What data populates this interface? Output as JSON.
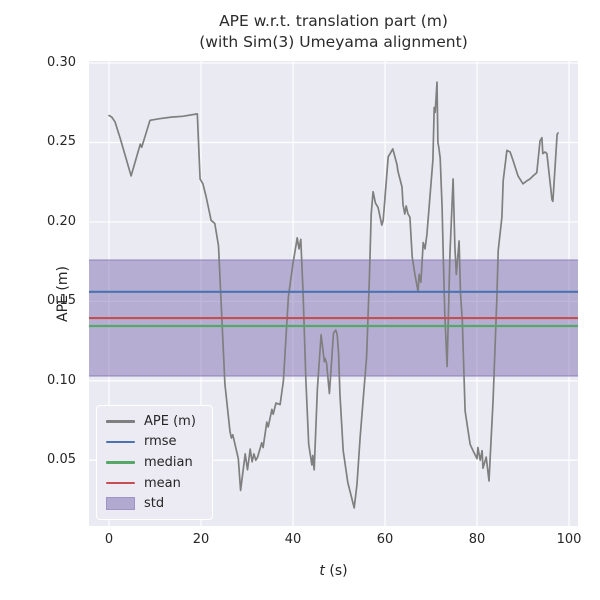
{
  "title": {
    "line1": "APE w.r.t. translation part (m)",
    "line2": "(with Sim(3) Umeyama alignment)"
  },
  "axes": {
    "ylabel": "APE (m)",
    "xlabel_italic": "t",
    "xlabel_rest": " (s)"
  },
  "colors": {
    "figure_bg": "#ffffff",
    "axes_bg": "#eaeaf2",
    "grid": "#ffffff",
    "text": "#262626",
    "ape_line": "#7f7f7f",
    "rmse": "#4c72b0",
    "median": "#55a868",
    "mean": "#c44e52",
    "std": "#8172b2"
  },
  "legend": {
    "entries": [
      {
        "label": "APE (m)",
        "type": "line",
        "color": "#7f7f7f"
      },
      {
        "label": "rmse",
        "type": "line",
        "color": "#4c72b0"
      },
      {
        "label": "median",
        "type": "line",
        "color": "#55a868"
      },
      {
        "label": "mean",
        "type": "line",
        "color": "#c44e52"
      },
      {
        "label": "std",
        "type": "patch",
        "color": "#8172b2"
      }
    ]
  },
  "chart_data": {
    "type": "line",
    "title": "APE w.r.t. translation part (m) (with Sim(3) Umeyama alignment)",
    "xlabel": "t (s)",
    "ylabel": "APE (m)",
    "xlim": [
      -4.35,
      101.95
    ],
    "ylim": [
      0.0086,
      0.3013
    ],
    "x_ticks": [
      0,
      20,
      40,
      60,
      80,
      100
    ],
    "x_tick_labels": [
      "0",
      "20",
      "40",
      "60",
      "80",
      "100"
    ],
    "y_ticks": [
      0.05,
      0.1,
      0.15,
      0.2,
      0.25,
      0.3
    ],
    "y_tick_labels": [
      "0.05",
      "0.10",
      "0.15",
      "0.20",
      "0.25",
      "0.30"
    ],
    "grid": true,
    "legend_position": "lower left",
    "stats": {
      "rmse": {
        "label": "rmse",
        "value": 0.156,
        "color": "#4c72b0"
      },
      "mean": {
        "label": "mean",
        "value": 0.1395,
        "color": "#c44e52"
      },
      "median": {
        "label": "median",
        "value": 0.1345,
        "color": "#55a868"
      }
    },
    "std_band": {
      "label": "std",
      "range": [
        0.103,
        0.176
      ],
      "color": "#8172b2",
      "alpha": 0.5
    },
    "series": [
      {
        "name": "APE (m)",
        "color": "#7f7f7f",
        "points": [
          [
            0,
            0.267
          ],
          [
            0.6,
            0.266
          ],
          [
            1.3,
            0.263
          ],
          [
            2.5,
            0.252
          ],
          [
            4.8,
            0.229
          ],
          [
            6.8,
            0.249
          ],
          [
            7.1,
            0.247
          ],
          [
            8.9,
            0.264
          ],
          [
            11,
            0.265
          ],
          [
            13.5,
            0.266
          ],
          [
            16,
            0.2665
          ],
          [
            19.2,
            0.268
          ],
          [
            19.8,
            0.227
          ],
          [
            20.4,
            0.224
          ],
          [
            21.1,
            0.216
          ],
          [
            22.2,
            0.201
          ],
          [
            23,
            0.199
          ],
          [
            23.8,
            0.185
          ],
          [
            25.2,
            0.098
          ],
          [
            26.3,
            0.068
          ],
          [
            26.6,
            0.064
          ],
          [
            26.9,
            0.066
          ],
          [
            28.1,
            0.051
          ],
          [
            28.6,
            0.031
          ],
          [
            29.6,
            0.054
          ],
          [
            30.1,
            0.044
          ],
          [
            30.7,
            0.057
          ],
          [
            31.1,
            0.049
          ],
          [
            31.5,
            0.054
          ],
          [
            31.9,
            0.05
          ],
          [
            32.3,
            0.052
          ],
          [
            33.2,
            0.061
          ],
          [
            33.5,
            0.058
          ],
          [
            34.3,
            0.074
          ],
          [
            34.6,
            0.071
          ],
          [
            35.4,
            0.082
          ],
          [
            35.7,
            0.079
          ],
          [
            36.3,
            0.086
          ],
          [
            37.2,
            0.085
          ],
          [
            37.9,
            0.1
          ],
          [
            39,
            0.153
          ],
          [
            40,
            0.174
          ],
          [
            40.7,
            0.186
          ],
          [
            40.9,
            0.19
          ],
          [
            41.3,
            0.183
          ],
          [
            41.7,
            0.189
          ],
          [
            42.2,
            0.155
          ],
          [
            42.8,
            0.1
          ],
          [
            43.4,
            0.06
          ],
          [
            44.1,
            0.047
          ],
          [
            44.3,
            0.053
          ],
          [
            44.6,
            0.044
          ],
          [
            45.3,
            0.095
          ],
          [
            46.1,
            0.129
          ],
          [
            46.6,
            0.117
          ],
          [
            46.8,
            0.112
          ],
          [
            47,
            0.114
          ],
          [
            47.3,
            0.111
          ],
          [
            47.9,
            0.092
          ],
          [
            48.8,
            0.13
          ],
          [
            49.3,
            0.132
          ],
          [
            49.6,
            0.129
          ],
          [
            49.9,
            0.117
          ],
          [
            50.2,
            0.092
          ],
          [
            50.9,
            0.056
          ],
          [
            51.9,
            0.036
          ],
          [
            53.3,
            0.02
          ],
          [
            53.9,
            0.035
          ],
          [
            54.6,
            0.065
          ],
          [
            55.3,
            0.09
          ],
          [
            56,
            0.115
          ],
          [
            56.6,
            0.165
          ],
          [
            57,
            0.205
          ],
          [
            57.4,
            0.219
          ],
          [
            57.9,
            0.212
          ],
          [
            58.5,
            0.209
          ],
          [
            59.3,
            0.198
          ],
          [
            59.6,
            0.201
          ],
          [
            60.7,
            0.241
          ],
          [
            61.7,
            0.246
          ],
          [
            62.6,
            0.236
          ],
          [
            62.8,
            0.232
          ],
          [
            63.7,
            0.222
          ],
          [
            63.9,
            0.211
          ],
          [
            64.3,
            0.205
          ],
          [
            64.6,
            0.21
          ],
          [
            65,
            0.205
          ],
          [
            65.4,
            0.203
          ],
          [
            65.9,
            0.178
          ],
          [
            66.5,
            0.167
          ],
          [
            67.2,
            0.156
          ],
          [
            67.4,
            0.167
          ],
          [
            67.8,
            0.162
          ],
          [
            68.3,
            0.187
          ],
          [
            68.7,
            0.183
          ],
          [
            69.1,
            0.192
          ],
          [
            70.4,
            0.239
          ],
          [
            70.7,
            0.272
          ],
          [
            70.9,
            0.269
          ],
          [
            71.3,
            0.288
          ],
          [
            71.5,
            0.25
          ],
          [
            71.7,
            0.247
          ],
          [
            72,
            0.24
          ],
          [
            72.4,
            0.209
          ],
          [
            72.7,
            0.175
          ],
          [
            73,
            0.142
          ],
          [
            73.5,
            0.109
          ],
          [
            74.1,
            0.179
          ],
          [
            74.8,
            0.227
          ],
          [
            75.2,
            0.184
          ],
          [
            75.5,
            0.167
          ],
          [
            76.1,
            0.188
          ],
          [
            76.4,
            0.155
          ],
          [
            76.8,
            0.138
          ],
          [
            77.4,
            0.081
          ],
          [
            78.5,
            0.06
          ],
          [
            79.3,
            0.055
          ],
          [
            80,
            0.051
          ],
          [
            80.2,
            0.058
          ],
          [
            80.7,
            0.05
          ],
          [
            81.1,
            0.056
          ],
          [
            81.3,
            0.045
          ],
          [
            82,
            0.052
          ],
          [
            82.6,
            0.037
          ],
          [
            83.5,
            0.088
          ],
          [
            84.3,
            0.151
          ],
          [
            84.6,
            0.182
          ],
          [
            85.4,
            0.203
          ],
          [
            85.7,
            0.226
          ],
          [
            86.5,
            0.245
          ],
          [
            87.2,
            0.244
          ],
          [
            87.8,
            0.239
          ],
          [
            88.9,
            0.229
          ],
          [
            90,
            0.224
          ],
          [
            90.9,
            0.226
          ],
          [
            91.5,
            0.227
          ],
          [
            92.2,
            0.229
          ],
          [
            93,
            0.231
          ],
          [
            93.7,
            0.251
          ],
          [
            94.1,
            0.253
          ],
          [
            94.3,
            0.243
          ],
          [
            94.8,
            0.244
          ],
          [
            95.2,
            0.243
          ],
          [
            96.3,
            0.214
          ],
          [
            96.5,
            0.213
          ],
          [
            97.4,
            0.255
          ],
          [
            97.6,
            0.256
          ]
        ]
      }
    ]
  }
}
